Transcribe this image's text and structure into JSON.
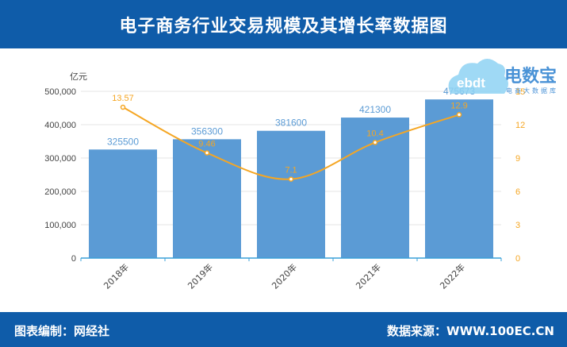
{
  "header": {
    "title": "电子商务行业交易规模及其增长率数据图"
  },
  "footer": {
    "left": "图表编制：网经社",
    "right": "数据来源：WWW.100EC.CN"
  },
  "logo": {
    "name": "电数宝",
    "sub": "电商大数据库",
    "mark": "ebdt"
  },
  "colors": {
    "header_bg": "#0f5ca9",
    "bar": "#5b9bd5",
    "line": "#f5a623",
    "bar_label": "#5b9bd5",
    "line_label": "#f5a623",
    "axis_text": "#444444"
  },
  "chart_data": {
    "type": "bar",
    "categories": [
      "2018年",
      "2019年",
      "2020年",
      "2021年",
      "2022年"
    ],
    "series": [
      {
        "values": [
          325500,
          356300,
          381600,
          421300,
          475673
        ],
        "axis": "left",
        "kind": "bar"
      },
      {
        "values": [
          13.57,
          9.46,
          7.1,
          10.4,
          12.9
        ],
        "axis": "right",
        "kind": "line"
      }
    ],
    "ylabel": "亿元",
    "ylim": [
      0,
      500000
    ],
    "yticks": [
      "0",
      "100,000",
      "200,000",
      "300,000",
      "400,000",
      "500,000"
    ],
    "y2lim": [
      0,
      15
    ],
    "y2ticks": [
      "0",
      "3",
      "6",
      "9",
      "12",
      "15"
    ],
    "grid": true
  }
}
